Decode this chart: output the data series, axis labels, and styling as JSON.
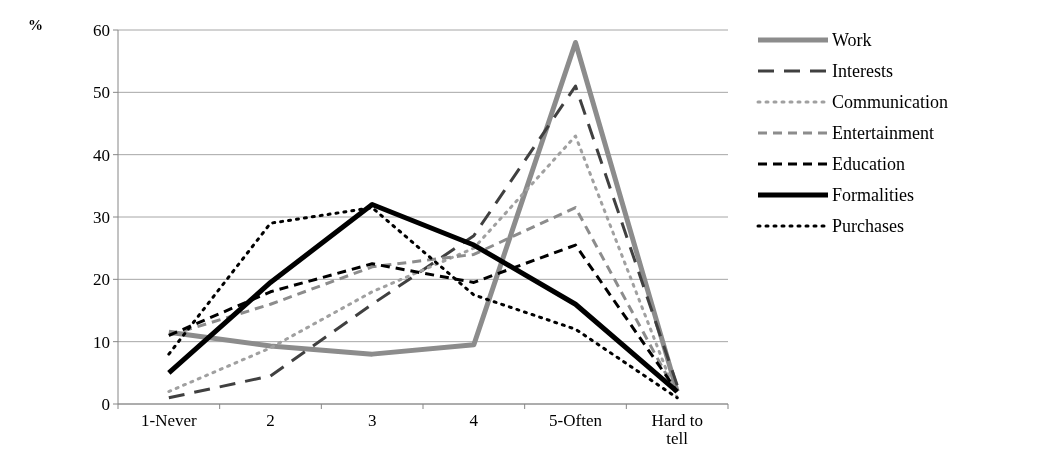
{
  "chart_data": {
    "type": "line",
    "ylabel": "%",
    "categories": [
      "1-Never",
      "2",
      "3",
      "4",
      "5-Often",
      "Hard to tell"
    ],
    "ylim": [
      0,
      60
    ],
    "yticks": [
      0,
      10,
      20,
      30,
      40,
      50,
      60
    ],
    "grid": "y",
    "legend": "right",
    "marker": "none",
    "series": [
      {
        "name": "Work",
        "color": "#8c8c8c",
        "line_style": "solid",
        "values": [
          11.5,
          9.3,
          8,
          9.5,
          58,
          2
        ]
      },
      {
        "name": "Interests",
        "color": "#404040",
        "line_style": "dashed",
        "values": [
          1,
          4.5,
          16,
          27,
          51,
          3
        ]
      },
      {
        "name": "Communication",
        "color": "#a0a0a0",
        "line_style": "dotted",
        "values": [
          2,
          9,
          18,
          25,
          43,
          1
        ]
      },
      {
        "name": "Entertainment",
        "color": "#8c8c8c",
        "line_style": "dashed",
        "values": [
          11,
          16,
          22,
          24,
          31.5,
          1.5
        ]
      },
      {
        "name": "Education",
        "color": "#000000",
        "line_style": "dashed",
        "values": [
          11,
          18,
          22.5,
          19.5,
          25.5,
          2
        ]
      },
      {
        "name": "Formalities",
        "color": "#000000",
        "line_style": "solid",
        "values": [
          5,
          19.5,
          32,
          25.5,
          16,
          2
        ]
      },
      {
        "name": "Purchases",
        "color": "#000000",
        "line_style": "dotted",
        "values": [
          8,
          29,
          31.5,
          17.5,
          12,
          1
        ]
      }
    ]
  }
}
